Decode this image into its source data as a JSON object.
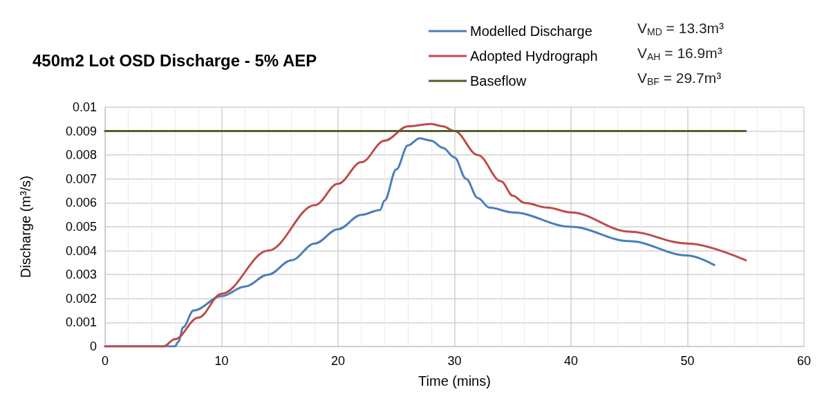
{
  "chart_data": {
    "type": "line",
    "title": "450m2 Lot OSD Discharge - 5% AEP",
    "xlabel": "Time (mins)",
    "ylabel": "Discharge (m³/s)",
    "xlim": [
      0,
      60
    ],
    "xticks": [
      0,
      10,
      20,
      30,
      40,
      50,
      60
    ],
    "ylim": [
      0,
      0.01
    ],
    "yticks": [
      0,
      0.001,
      0.002,
      0.003,
      0.004,
      0.005,
      0.006,
      0.007,
      0.008,
      0.009,
      0.01
    ],
    "grid": true,
    "legend": "top right",
    "marker": "none",
    "line_style": "solid",
    "annotations": [
      "V$_{MD}$ = 13.3m³",
      "V$_{AH}$ = 16.9m³",
      "V$_{BF}$ = 29.7m³"
    ],
    "series": [
      {
        "name": "Modelled Discharge",
        "color": "#4a7ebb",
        "x": [
          0,
          6,
          6.3,
          6.7,
          7.6,
          10,
          12,
          14,
          16,
          18,
          20,
          22,
          23.6,
          24,
          25,
          26,
          27,
          28,
          29,
          30,
          31,
          32,
          33,
          35,
          40,
          45,
          50,
          52.3
        ],
        "values": [
          0,
          0,
          0.0002,
          0.0008,
          0.0015,
          0.0021,
          0.0025,
          0.003,
          0.0036,
          0.0043,
          0.0049,
          0.0055,
          0.0057,
          0.0061,
          0.0074,
          0.0084,
          0.0087,
          0.0086,
          0.0083,
          0.0079,
          0.007,
          0.0062,
          0.0058,
          0.0056,
          0.005,
          0.0044,
          0.0038,
          0.0034
        ]
      },
      {
        "name": "Adopted Hydrograph",
        "color": "#be4b48",
        "x": [
          0,
          5,
          6,
          8,
          10,
          14,
          18,
          20,
          22,
          24,
          26,
          28,
          29,
          30,
          32,
          34,
          35,
          36,
          38,
          40,
          45,
          50,
          55
        ],
        "values": [
          0,
          0,
          0.0003,
          0.0012,
          0.0022,
          0.004,
          0.0059,
          0.0068,
          0.0077,
          0.0086,
          0.0092,
          0.0093,
          0.0092,
          0.009,
          0.008,
          0.0069,
          0.0063,
          0.006,
          0.0058,
          0.0056,
          0.0048,
          0.0043,
          0.0036
        ]
      },
      {
        "name": "Baseflow",
        "color": "#4f6228",
        "x": [
          0,
          55
        ],
        "values": [
          0.009,
          0.009
        ]
      }
    ]
  }
}
